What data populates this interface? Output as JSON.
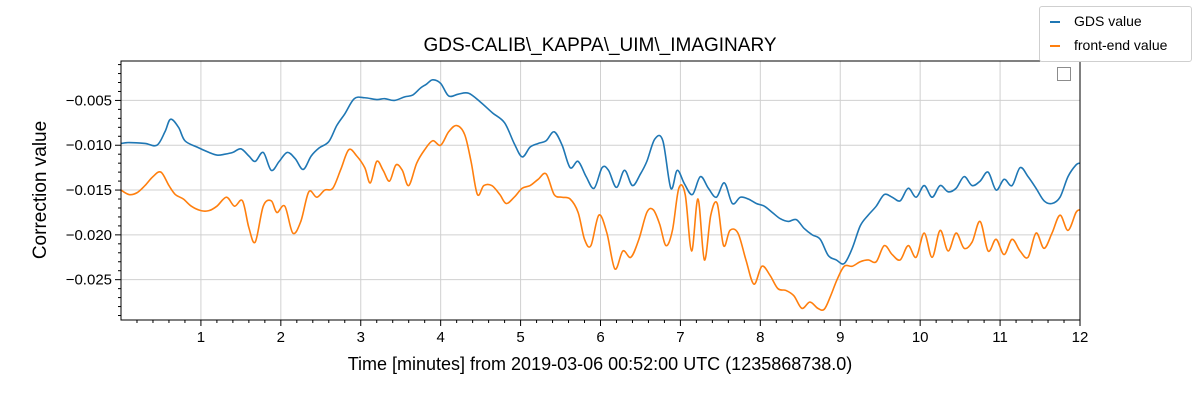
{
  "chart_data": {
    "type": "line",
    "title": "GDS-CALIB\\_KAPPA\\_UIM\\_IMAGINARY",
    "xlabel": "Time [minutes] from 2019-03-06 00:52:00 UTC (1235868738.0)",
    "ylabel": "Correction value",
    "xlim": [
      0,
      12
    ],
    "ylim": [
      -0.0295,
      -0.0006
    ],
    "x_ticks": [
      1,
      2,
      3,
      4,
      5,
      6,
      7,
      8,
      9,
      10,
      11,
      12
    ],
    "y_ticks": [
      -0.005,
      -0.01,
      -0.015,
      -0.02,
      -0.025
    ],
    "grid": true,
    "legend_position": "top-right",
    "series": [
      {
        "name": "GDS value",
        "color": "#1f77b4",
        "x": [
          0,
          0.1,
          0.3,
          0.45,
          0.55,
          0.62,
          0.72,
          0.8,
          0.95,
          1.1,
          1.2,
          1.3,
          1.4,
          1.5,
          1.6,
          1.68,
          1.78,
          1.88,
          1.98,
          2.08,
          2.18,
          2.28,
          2.38,
          2.48,
          2.6,
          2.7,
          2.8,
          2.92,
          3.05,
          3.2,
          3.3,
          3.42,
          3.55,
          3.65,
          3.75,
          3.82,
          3.9,
          4.0,
          4.1,
          4.22,
          4.35,
          4.5,
          4.65,
          4.8,
          4.92,
          5.02,
          5.12,
          5.22,
          5.32,
          5.42,
          5.52,
          5.62,
          5.72,
          5.82,
          5.92,
          6.02,
          6.1,
          6.2,
          6.3,
          6.4,
          6.5,
          6.58,
          6.68,
          6.78,
          6.88,
          6.96,
          7.05,
          7.15,
          7.25,
          7.35,
          7.45,
          7.55,
          7.65,
          7.75,
          7.85,
          7.95,
          8.05,
          8.15,
          8.25,
          8.35,
          8.45,
          8.55,
          8.65,
          8.75,
          8.85,
          8.95,
          9.05,
          9.15,
          9.25,
          9.35,
          9.45,
          9.55,
          9.65,
          9.75,
          9.85,
          9.95,
          10.05,
          10.15,
          10.25,
          10.35,
          10.45,
          10.55,
          10.65,
          10.75,
          10.85,
          10.95,
          11.05,
          11.15,
          11.25,
          11.35,
          11.45,
          11.55,
          11.65,
          11.75,
          11.85,
          11.95,
          12.0
        ],
        "y": [
          -0.0098,
          -0.0097,
          -0.0098,
          -0.01,
          -0.0085,
          -0.0071,
          -0.008,
          -0.0095,
          -0.0102,
          -0.0108,
          -0.0111,
          -0.011,
          -0.0108,
          -0.0104,
          -0.0112,
          -0.0118,
          -0.0108,
          -0.0128,
          -0.0118,
          -0.0108,
          -0.0115,
          -0.0127,
          -0.0112,
          -0.0103,
          -0.0096,
          -0.0078,
          -0.0065,
          -0.0048,
          -0.0047,
          -0.0049,
          -0.0048,
          -0.005,
          -0.0046,
          -0.0044,
          -0.0036,
          -0.0032,
          -0.0027,
          -0.0031,
          -0.0045,
          -0.0043,
          -0.0042,
          -0.0052,
          -0.0064,
          -0.0075,
          -0.0098,
          -0.0113,
          -0.0102,
          -0.0098,
          -0.0095,
          -0.0085,
          -0.01,
          -0.0125,
          -0.0118,
          -0.0135,
          -0.0148,
          -0.0125,
          -0.0128,
          -0.0147,
          -0.0128,
          -0.0145,
          -0.0132,
          -0.0118,
          -0.0093,
          -0.0095,
          -0.0148,
          -0.0128,
          -0.0143,
          -0.0155,
          -0.0135,
          -0.0148,
          -0.0158,
          -0.0142,
          -0.0165,
          -0.0158,
          -0.016,
          -0.0165,
          -0.0168,
          -0.0175,
          -0.0182,
          -0.0185,
          -0.0183,
          -0.0193,
          -0.02,
          -0.0205,
          -0.0223,
          -0.0228,
          -0.0232,
          -0.0215,
          -0.019,
          -0.0178,
          -0.0168,
          -0.0155,
          -0.0158,
          -0.0162,
          -0.0148,
          -0.0158,
          -0.0145,
          -0.0158,
          -0.0145,
          -0.0152,
          -0.0148,
          -0.0135,
          -0.0145,
          -0.014,
          -0.013,
          -0.015,
          -0.0138,
          -0.0145,
          -0.0125,
          -0.0135,
          -0.0148,
          -0.0162,
          -0.0165,
          -0.0158,
          -0.0135,
          -0.0122,
          -0.012
        ]
      },
      {
        "name": "front-end value",
        "color": "#ff7f0e",
        "x": [
          0,
          0.1,
          0.2,
          0.3,
          0.4,
          0.5,
          0.6,
          0.68,
          0.78,
          0.88,
          1.0,
          1.1,
          1.2,
          1.32,
          1.42,
          1.52,
          1.6,
          1.68,
          1.78,
          1.88,
          1.95,
          2.05,
          2.15,
          2.25,
          2.35,
          2.45,
          2.55,
          2.65,
          2.75,
          2.85,
          2.95,
          3.05,
          3.12,
          3.2,
          3.28,
          3.36,
          3.44,
          3.52,
          3.6,
          3.7,
          3.8,
          3.9,
          4.0,
          4.1,
          4.2,
          4.3,
          4.38,
          4.46,
          4.54,
          4.64,
          4.74,
          4.82,
          4.92,
          5.02,
          5.12,
          5.22,
          5.32,
          5.42,
          5.52,
          5.62,
          5.72,
          5.8,
          5.88,
          5.98,
          6.08,
          6.18,
          6.28,
          6.38,
          6.48,
          6.58,
          6.66,
          6.74,
          6.82,
          6.9,
          6.98,
          7.06,
          7.14,
          7.22,
          7.3,
          7.38,
          7.46,
          7.54,
          7.62,
          7.72,
          7.82,
          7.92,
          8.02,
          8.12,
          8.22,
          8.32,
          8.42,
          8.52,
          8.62,
          8.72,
          8.8,
          8.88,
          8.96,
          9.05,
          9.15,
          9.25,
          9.35,
          9.45,
          9.55,
          9.65,
          9.75,
          9.85,
          9.95,
          10.05,
          10.15,
          10.25,
          10.35,
          10.45,
          10.55,
          10.65,
          10.75,
          10.85,
          10.95,
          11.05,
          11.15,
          11.25,
          11.35,
          11.45,
          11.55,
          11.65,
          11.75,
          11.85,
          11.95,
          12.0
        ],
        "y": [
          -0.015,
          -0.0155,
          -0.0153,
          -0.0145,
          -0.0135,
          -0.013,
          -0.0145,
          -0.0155,
          -0.016,
          -0.0168,
          -0.0173,
          -0.0173,
          -0.0168,
          -0.0158,
          -0.0168,
          -0.0162,
          -0.0192,
          -0.0208,
          -0.0168,
          -0.0162,
          -0.0175,
          -0.0168,
          -0.0198,
          -0.0185,
          -0.0152,
          -0.0158,
          -0.015,
          -0.0148,
          -0.0127,
          -0.0105,
          -0.0112,
          -0.0125,
          -0.0142,
          -0.0118,
          -0.0128,
          -0.014,
          -0.0122,
          -0.0128,
          -0.0145,
          -0.012,
          -0.0105,
          -0.0095,
          -0.01,
          -0.0085,
          -0.0078,
          -0.0088,
          -0.0118,
          -0.0155,
          -0.0145,
          -0.0145,
          -0.0155,
          -0.0165,
          -0.0158,
          -0.0148,
          -0.0145,
          -0.0138,
          -0.0132,
          -0.0155,
          -0.0158,
          -0.016,
          -0.0175,
          -0.0205,
          -0.0212,
          -0.0178,
          -0.0198,
          -0.0238,
          -0.0218,
          -0.0225,
          -0.0205,
          -0.0175,
          -0.0172,
          -0.0188,
          -0.0212,
          -0.0195,
          -0.0148,
          -0.0155,
          -0.0218,
          -0.016,
          -0.0228,
          -0.0178,
          -0.0165,
          -0.0212,
          -0.0195,
          -0.0198,
          -0.0228,
          -0.0255,
          -0.0235,
          -0.0245,
          -0.026,
          -0.0262,
          -0.0268,
          -0.0282,
          -0.0275,
          -0.0282,
          -0.0283,
          -0.0268,
          -0.025,
          -0.0235,
          -0.0235,
          -0.023,
          -0.0228,
          -0.023,
          -0.0212,
          -0.0222,
          -0.0228,
          -0.0212,
          -0.0225,
          -0.0198,
          -0.0225,
          -0.0195,
          -0.0218,
          -0.0198,
          -0.0215,
          -0.0208,
          -0.0185,
          -0.0218,
          -0.0205,
          -0.0222,
          -0.0205,
          -0.0218,
          -0.0225,
          -0.0198,
          -0.0215,
          -0.0198,
          -0.0178,
          -0.0195,
          -0.0175,
          -0.0172
        ]
      }
    ]
  }
}
